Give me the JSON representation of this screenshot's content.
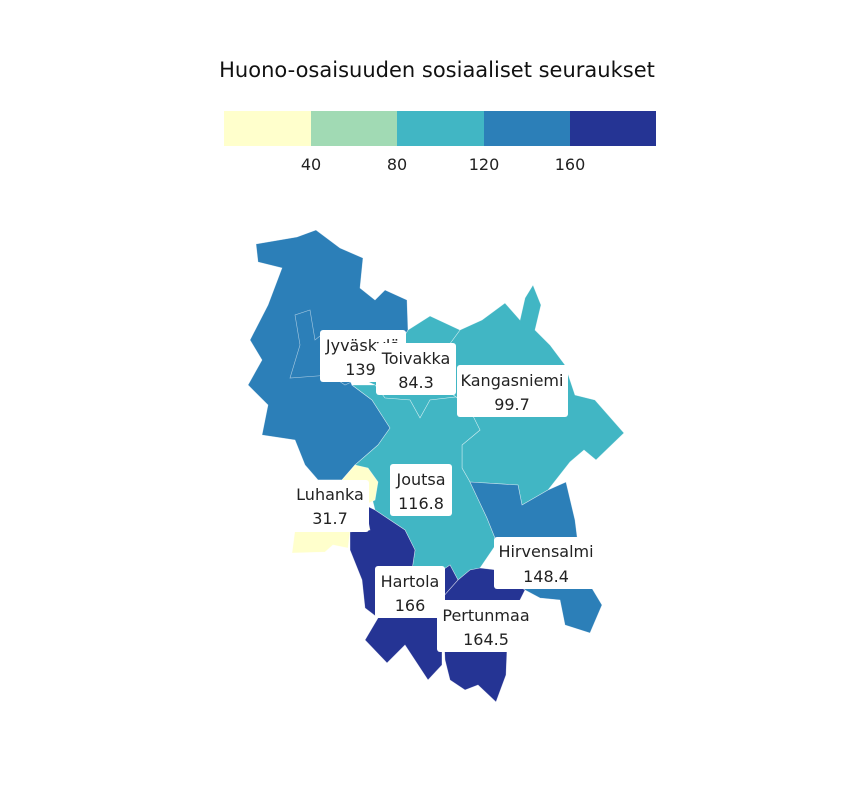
{
  "title": "Huono-osaisuuden sosiaaliset seuraukset",
  "legend": {
    "ticks": [
      "40",
      "80",
      "120",
      "160"
    ],
    "colors": [
      "#ffffcc",
      "#a1dab4",
      "#41b6c4",
      "#2c7fb8",
      "#253494"
    ],
    "breaks": [
      40,
      80,
      120,
      160
    ]
  },
  "regions": [
    {
      "id": "jyvaskyla",
      "name": "Jyväskylä",
      "value_text": "139.",
      "value": 139.0
    },
    {
      "id": "toivakka",
      "name": "Toivakka",
      "value_text": "84.3",
      "value": 84.3
    },
    {
      "id": "kangasniemi",
      "name": "Kangasniemi",
      "value_text": "99.7",
      "value": 99.7
    },
    {
      "id": "joutsa",
      "name": "Joutsa",
      "value_text": "116.8",
      "value": 116.8
    },
    {
      "id": "luhanka",
      "name": "Luhanka",
      "value_text": "31.7",
      "value": 31.7
    },
    {
      "id": "hirvensalmi",
      "name": "Hirvensalmi",
      "value_text": "148.4",
      "value": 148.4
    },
    {
      "id": "hartola",
      "name": "Hartola",
      "value_text": "166",
      "value": 166
    },
    {
      "id": "pertunmaa",
      "name": "Pertunmaa",
      "value_text": "164.5",
      "value": 164.5
    }
  ]
}
